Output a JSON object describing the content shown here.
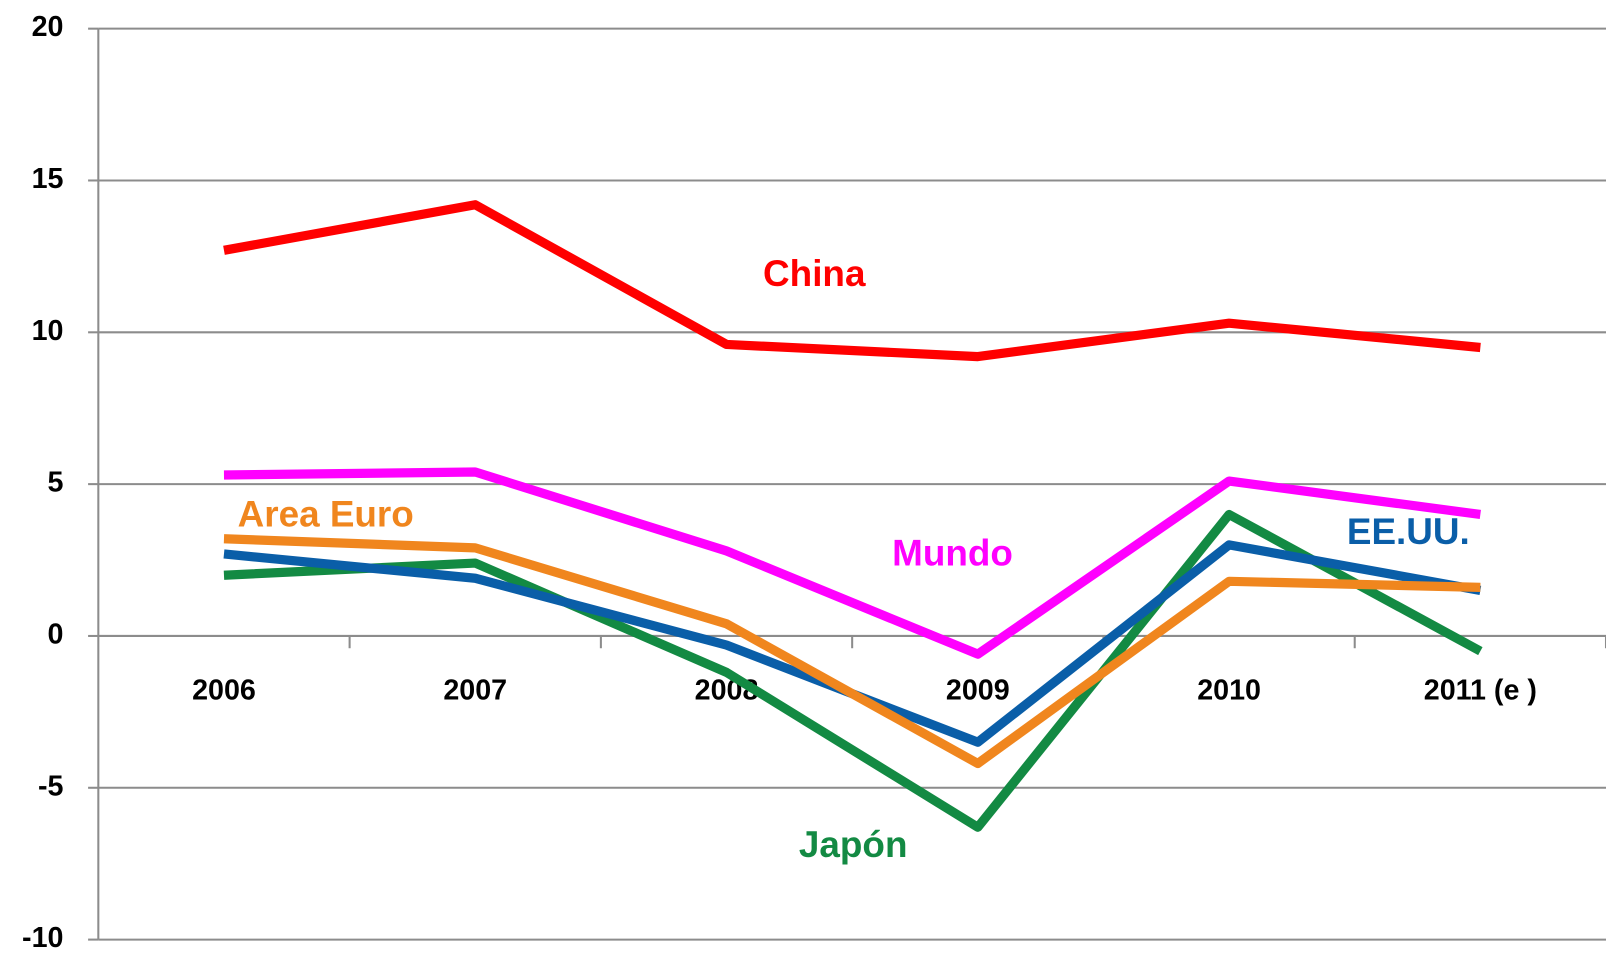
{
  "chart_data": {
    "type": "line",
    "categories": [
      "2006",
      "2007",
      "2008",
      "2009",
      "2010",
      "2011 (e )"
    ],
    "series": [
      {
        "name": "China",
        "color": "#ff0000",
        "values": [
          12.7,
          14.2,
          9.6,
          9.2,
          10.3,
          9.5
        ]
      },
      {
        "name": "Mundo",
        "color": "#ff00ff",
        "values": [
          5.3,
          5.4,
          2.8,
          -0.6,
          5.1,
          4.0
        ]
      },
      {
        "name": "Area Euro",
        "color": "#f0861e",
        "values": [
          3.2,
          2.9,
          0.4,
          -4.2,
          1.8,
          1.6
        ]
      },
      {
        "name": "EE.UU.",
        "color": "#0a5ea8",
        "values": [
          2.7,
          1.9,
          -0.3,
          -3.5,
          3.0,
          1.5
        ]
      },
      {
        "name": "Japón",
        "color": "#138a43",
        "values": [
          2.0,
          2.4,
          -1.2,
          -6.3,
          4.0,
          -0.5
        ]
      }
    ],
    "ylim": [
      -10,
      20
    ],
    "yticks": [
      -10,
      -5,
      0,
      5,
      10,
      15,
      20
    ],
    "grid": true
  }
}
